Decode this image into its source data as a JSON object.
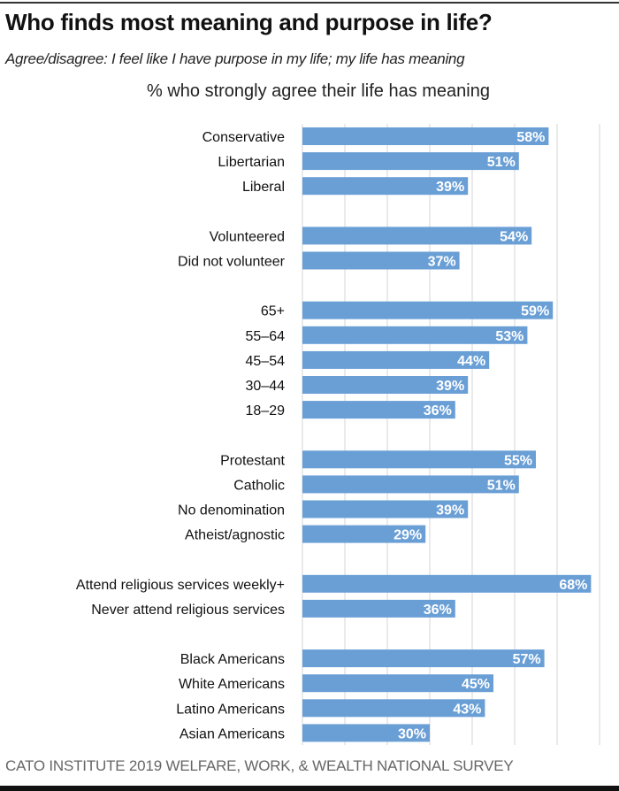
{
  "header": {
    "title": "Who finds most meaning and purpose in life?",
    "subtitle": "Agree/disagree: I feel like I have purpose in my life; my life has meaning",
    "chart_title": "% who strongly agree their life has meaning"
  },
  "footer": {
    "source": "CATO INSTITUTE 2019 WELFARE, WORK, & WEALTH NATIONAL SURVEY"
  },
  "colors": {
    "bar": "#6a9fd6",
    "grid": "#e3e3e3",
    "value_label": "#ffffff"
  },
  "chart_data": {
    "type": "bar",
    "orientation": "horizontal",
    "title": "% who strongly agree their life has meaning",
    "xlabel": "",
    "ylabel": "",
    "xlim": [
      0,
      70
    ],
    "grid": true,
    "gridline_step": 10,
    "value_suffix": "%",
    "groups": [
      {
        "categories": [
          "Conservative",
          "Libertarian",
          "Liberal"
        ],
        "values": [
          58,
          51,
          39
        ]
      },
      {
        "categories": [
          "Volunteered",
          "Did not volunteer"
        ],
        "values": [
          54,
          37
        ]
      },
      {
        "categories": [
          "65+",
          "55–64",
          "45–54",
          "30–44",
          "18–29"
        ],
        "values": [
          59,
          53,
          44,
          39,
          36
        ]
      },
      {
        "categories": [
          "Protestant",
          "Catholic",
          "No denomination",
          "Atheist/agnostic"
        ],
        "values": [
          55,
          51,
          39,
          29
        ]
      },
      {
        "categories": [
          "Attend religious services weekly+",
          "Never attend religious services"
        ],
        "values": [
          68,
          36
        ]
      },
      {
        "categories": [
          "Black Americans",
          "White Americans",
          "Latino Americans",
          "Asian Americans"
        ],
        "values": [
          57,
          45,
          43,
          30
        ]
      }
    ]
  }
}
